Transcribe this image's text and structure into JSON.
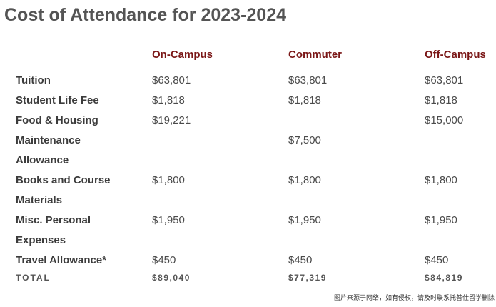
{
  "title": "Cost of Attendance for 2023-2024",
  "columns": [
    "On-Campus",
    "Commuter",
    "Off-Campus"
  ],
  "rows": [
    {
      "label_lines": [
        "Tuition"
      ],
      "values": [
        "$63,801",
        "$63,801",
        "$63,801"
      ]
    },
    {
      "label_lines": [
        "Student Life Fee"
      ],
      "values": [
        "$1,818",
        "$1,818",
        "$1,818"
      ]
    },
    {
      "label_lines": [
        "Food & Housing"
      ],
      "values": [
        "$19,221",
        "",
        "$15,000"
      ]
    },
    {
      "label_lines": [
        "Maintenance",
        "Allowance"
      ],
      "values": [
        "",
        "$7,500",
        ""
      ]
    },
    {
      "label_lines": [
        "Books and Course",
        "Materials"
      ],
      "values": [
        "$1,800",
        "$1,800",
        "$1,800"
      ]
    },
    {
      "label_lines": [
        "Misc. Personal",
        "Expenses"
      ],
      "values": [
        "$1,950",
        "$1,950",
        "$1,950"
      ]
    },
    {
      "label_lines": [
        "Travel Allowance*"
      ],
      "values": [
        "$450",
        "$450",
        "$450"
      ]
    }
  ],
  "total": {
    "label": "TOTAL",
    "values": [
      "$89,040",
      "$77,319",
      "$84,819"
    ]
  },
  "watermark": "图片来源于网络，如有侵权，请及时联系托普仕留学删除"
}
